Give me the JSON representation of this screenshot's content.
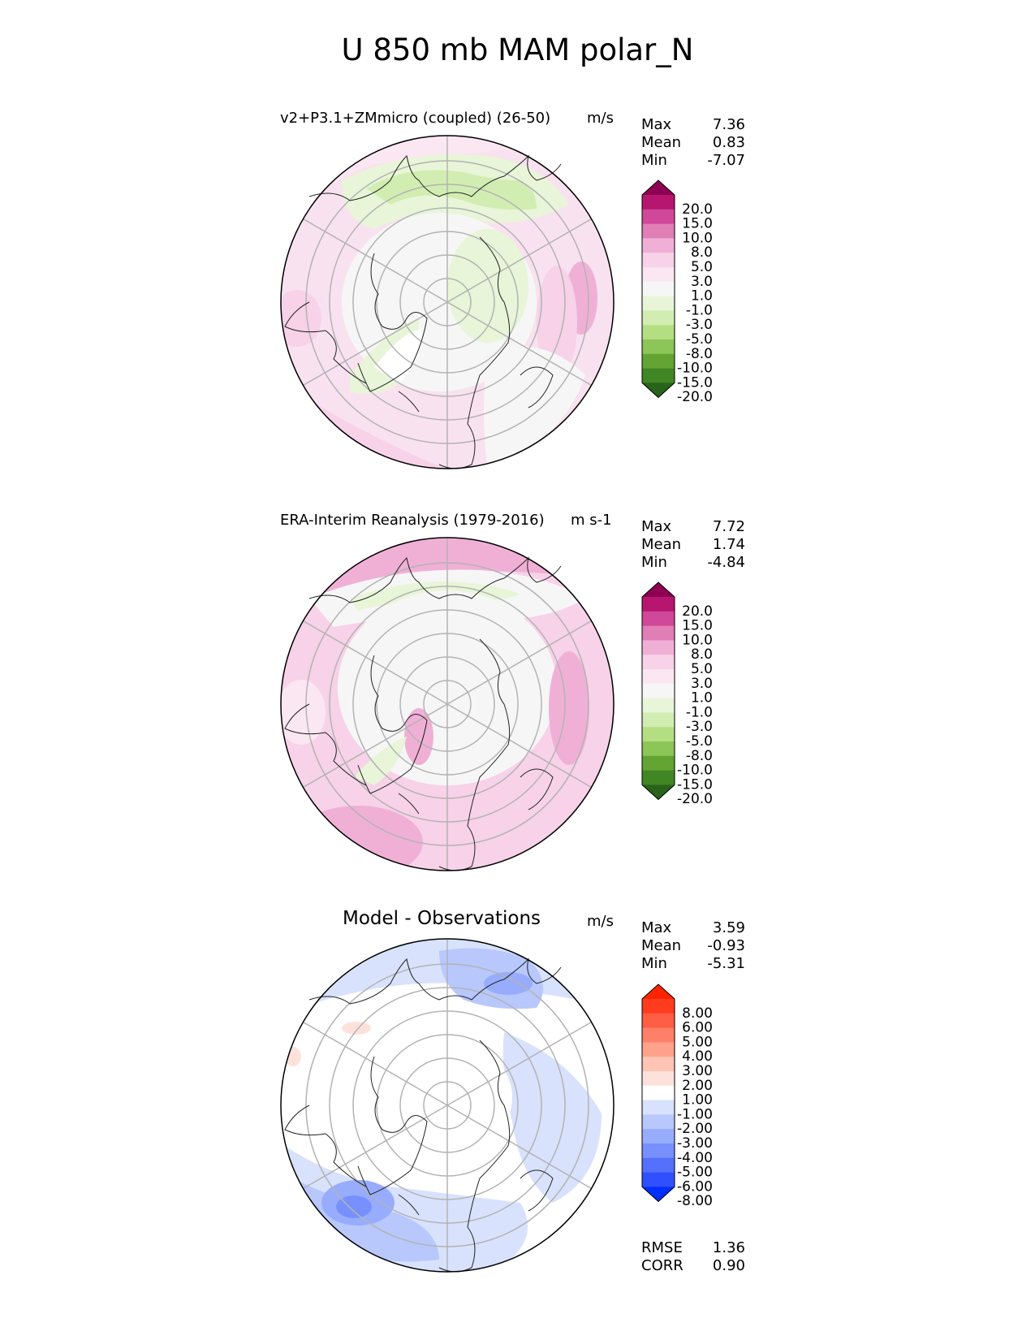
{
  "figure": {
    "title": "U 850 mb MAM polar_N"
  },
  "panels": [
    {
      "title": "v2+P3.1+ZMmicro (coupled) (26-50)",
      "units": "m/s",
      "stats": [
        {
          "label": "Max",
          "value": "7.36"
        },
        {
          "label": "Mean",
          "value": "0.83"
        },
        {
          "label": "Min",
          "value": "-7.07"
        }
      ],
      "colorbar": {
        "levels": [
          "20.0",
          "15.0",
          "10.0",
          "8.0",
          "5.0",
          "3.0",
          "1.0",
          "-1.0",
          "-3.0",
          "-5.0",
          "-8.0",
          "-10.0",
          "-15.0",
          "-20.0"
        ],
        "colors": [
          "#8e0152",
          "#b6166f",
          "#d0489a",
          "#e07eb6",
          "#f0b0d6",
          "#f7d2e8",
          "#fbe7f2",
          "#f6f6f6",
          "#e8f5d8",
          "#d2edb2",
          "#b3df82",
          "#8cc558",
          "#64a432",
          "#418624",
          "#276419"
        ]
      }
    },
    {
      "title": "ERA-Interim Reanalysis (1979-2016)",
      "units": "m s-1",
      "stats": [
        {
          "label": "Max",
          "value": "7.72"
        },
        {
          "label": "Mean",
          "value": "1.74"
        },
        {
          "label": "Min",
          "value": "-4.84"
        }
      ],
      "colorbar": {
        "levels": [
          "20.0",
          "15.0",
          "10.0",
          "8.0",
          "5.0",
          "3.0",
          "1.0",
          "-1.0",
          "-3.0",
          "-5.0",
          "-8.0",
          "-10.0",
          "-15.0",
          "-20.0"
        ],
        "colors": [
          "#8e0152",
          "#b6166f",
          "#d0489a",
          "#e07eb6",
          "#f0b0d6",
          "#f7d2e8",
          "#fbe7f2",
          "#f6f6f6",
          "#e8f5d8",
          "#d2edb2",
          "#b3df82",
          "#8cc558",
          "#64a432",
          "#418624",
          "#276419"
        ]
      }
    },
    {
      "title": "Model - Observations",
      "units": "m/s",
      "stats": [
        {
          "label": "Max",
          "value": "3.59"
        },
        {
          "label": "Mean",
          "value": "-0.93"
        },
        {
          "label": "Min",
          "value": "-5.31"
        }
      ],
      "extra_stats": [
        {
          "label": "RMSE",
          "value": "1.36"
        },
        {
          "label": "CORR",
          "value": "0.90"
        }
      ],
      "colorbar": {
        "levels": [
          "8.00",
          "6.00",
          "5.00",
          "4.00",
          "3.00",
          "2.00",
          "1.00",
          "-1.00",
          "-2.00",
          "-3.00",
          "-4.00",
          "-5.00",
          "-6.00",
          "-8.00"
        ],
        "colors": [
          "#ff2400",
          "#ff3c1e",
          "#fe5e44",
          "#fe8068",
          "#fea28c",
          "#fec4b4",
          "#fde2dc",
          "#ffffff",
          "#d8e2fd",
          "#b8c8fd",
          "#98acfd",
          "#7890fd",
          "#5470fd",
          "#3050fd",
          "#0030ff"
        ]
      }
    }
  ],
  "chart_data": {
    "type": "heatmap",
    "title": "U 850 mb MAM polar_N",
    "projection": "north-polar-stereographic",
    "panels": [
      {
        "name": "test",
        "title": "v2+P3.1+ZMmicro (coupled) (26-50)",
        "units": "m/s",
        "max": 7.36,
        "mean": 0.83,
        "min": -7.07,
        "contour_levels": [
          -20,
          -15,
          -10,
          -8,
          -5,
          -3,
          -1,
          1,
          3,
          5,
          8,
          10,
          15,
          20
        ]
      },
      {
        "name": "reference",
        "title": "ERA-Interim Reanalysis (1979-2016)",
        "units": "m s-1",
        "max": 7.72,
        "mean": 1.74,
        "min": -4.84,
        "contour_levels": [
          -20,
          -15,
          -10,
          -8,
          -5,
          -3,
          -1,
          1,
          3,
          5,
          8,
          10,
          15,
          20
        ]
      },
      {
        "name": "difference",
        "title": "Model - Observations",
        "units": "m/s",
        "max": 3.59,
        "mean": -0.93,
        "min": -5.31,
        "rmse": 1.36,
        "corr": 0.9,
        "contour_levels": [
          -8,
          -6,
          -5,
          -4,
          -3,
          -2,
          -1,
          1,
          2,
          3,
          4,
          5,
          6,
          8
        ]
      }
    ]
  }
}
